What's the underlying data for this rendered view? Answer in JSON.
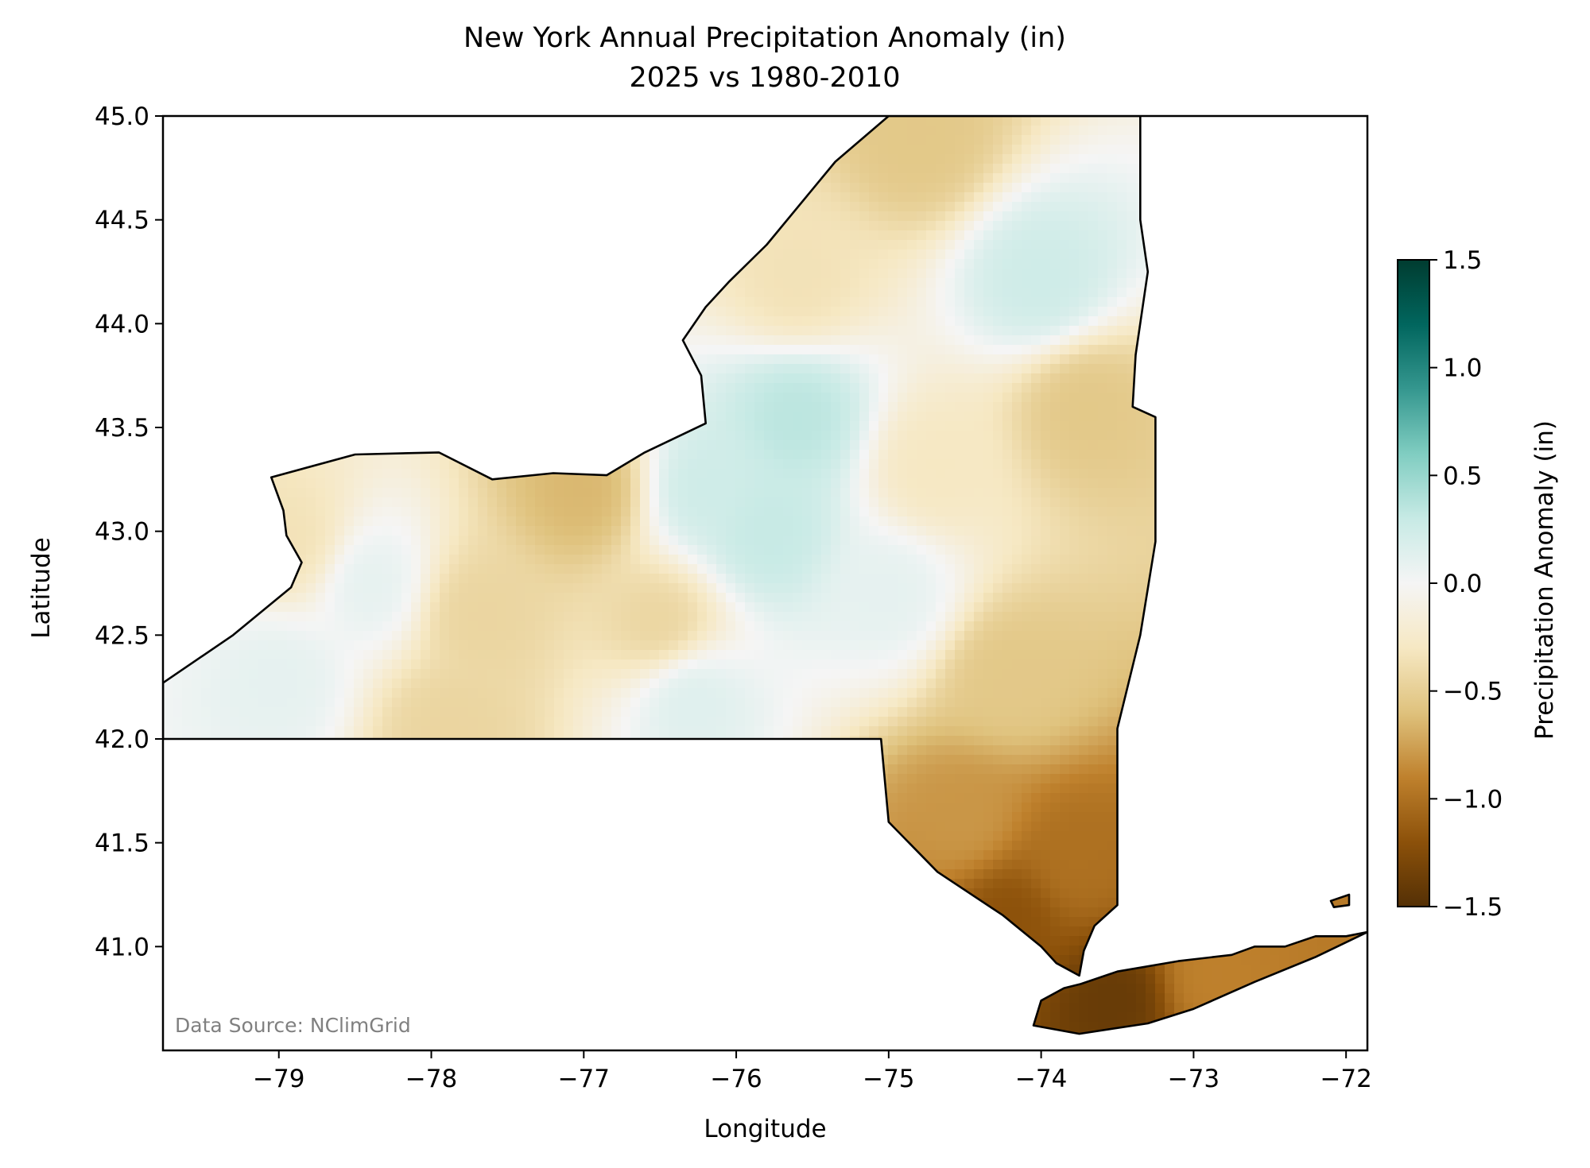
{
  "title": "New York Annual Precipitation Anomaly (in)",
  "subtitle": "2025 vs 1980-2010",
  "xlabel": "Longitude",
  "ylabel": "Latitude",
  "colorbar_label": "Precipitation Anomaly (in)",
  "source_note": "Data Source: NClimGrid",
  "colors": {
    "colormap": "BrBG",
    "stops": [
      "#543005",
      "#8c510a",
      "#bf812d",
      "#dfc27d",
      "#f6e8c3",
      "#f5f5f5",
      "#c7eae5",
      "#80cdc1",
      "#35978f",
      "#01665e",
      "#003c30"
    ],
    "boundary": "#000000"
  },
  "chart_data": {
    "type": "heatmap",
    "title": "New York Annual Precipitation Anomaly (in)",
    "subtitle": "2025 vs 1980-2010",
    "xlabel": "Longitude",
    "ylabel": "Latitude",
    "xlim": [
      -79.76,
      -71.86
    ],
    "ylim": [
      40.5,
      45.0
    ],
    "xticks": [
      -79,
      -78,
      -77,
      -76,
      -75,
      -74,
      -73,
      -72
    ],
    "xtick_labels": [
      "−79",
      "−78",
      "−77",
      "−76",
      "−75",
      "−74",
      "−73",
      "−72"
    ],
    "yticks": [
      41.0,
      41.5,
      42.0,
      42.5,
      43.0,
      43.5,
      44.0,
      44.5,
      45.0
    ],
    "ytick_labels": [
      "41.0",
      "41.5",
      "42.0",
      "42.5",
      "43.0",
      "43.5",
      "44.0",
      "44.5",
      "45.0"
    ],
    "colorbar": {
      "label": "Precipitation Anomaly (in)",
      "range": [
        -1.5,
        1.5
      ],
      "ticks": [
        -1.5,
        -1.0,
        -0.5,
        0.0,
        0.5,
        1.0,
        1.5
      ],
      "tick_labels": [
        "−1.5",
        "−1.0",
        "−0.5",
        "0.0",
        "0.5",
        "1.0",
        "1.5"
      ]
    },
    "state_outline": [
      [
        -79.76,
        42.27
      ],
      [
        -79.3,
        42.5
      ],
      [
        -78.92,
        42.73
      ],
      [
        -78.85,
        42.85
      ],
      [
        -78.95,
        42.98
      ],
      [
        -78.97,
        43.1
      ],
      [
        -79.05,
        43.26
      ],
      [
        -78.5,
        43.37
      ],
      [
        -77.95,
        43.38
      ],
      [
        -77.6,
        43.25
      ],
      [
        -77.2,
        43.28
      ],
      [
        -76.85,
        43.27
      ],
      [
        -76.6,
        43.38
      ],
      [
        -76.2,
        43.52
      ],
      [
        -76.23,
        43.75
      ],
      [
        -76.35,
        43.92
      ],
      [
        -76.2,
        44.08
      ],
      [
        -76.05,
        44.2
      ],
      [
        -75.8,
        44.38
      ],
      [
        -75.35,
        44.78
      ],
      [
        -75.0,
        45.0
      ],
      [
        -74.5,
        45.0
      ],
      [
        -73.35,
        45.0
      ],
      [
        -73.35,
        44.86
      ],
      [
        -73.35,
        44.5
      ],
      [
        -73.3,
        44.25
      ],
      [
        -73.38,
        43.85
      ],
      [
        -73.4,
        43.6
      ],
      [
        -73.25,
        43.55
      ],
      [
        -73.25,
        42.95
      ],
      [
        -73.35,
        42.5
      ],
      [
        -73.5,
        42.05
      ],
      [
        -73.5,
        41.2
      ],
      [
        -73.65,
        41.1
      ],
      [
        -73.72,
        40.98
      ],
      [
        -73.75,
        40.86
      ],
      [
        -73.9,
        40.92
      ],
      [
        -74.0,
        41.0
      ],
      [
        -74.25,
        41.15
      ],
      [
        -74.68,
        41.36
      ],
      [
        -75.0,
        41.6
      ],
      [
        -75.05,
        42.0
      ],
      [
        -79.76,
        42.0
      ]
    ],
    "long_island_outline": [
      [
        -74.05,
        40.62
      ],
      [
        -73.75,
        40.58
      ],
      [
        -73.3,
        40.63
      ],
      [
        -73.0,
        40.7
      ],
      [
        -72.6,
        40.83
      ],
      [
        -72.2,
        40.95
      ],
      [
        -71.86,
        41.07
      ],
      [
        -72.0,
        41.05
      ],
      [
        -72.2,
        41.05
      ],
      [
        -72.4,
        41.0
      ],
      [
        -72.6,
        41.0
      ],
      [
        -72.75,
        40.96
      ],
      [
        -73.1,
        40.93
      ],
      [
        -73.5,
        40.88
      ],
      [
        -73.74,
        40.82
      ],
      [
        -73.85,
        40.8
      ],
      [
        -74.0,
        40.74
      ],
      [
        -74.05,
        40.62
      ]
    ],
    "fishers_island_outline": [
      [
        -72.1,
        41.22
      ],
      [
        -71.98,
        41.25
      ],
      [
        -71.98,
        41.2
      ],
      [
        -72.08,
        41.19
      ]
    ],
    "anomaly_centers": [
      {
        "lon": -75.6,
        "lat": 43.55,
        "value": 0.35
      },
      {
        "lon": -75.8,
        "lat": 43.0,
        "value": 0.3
      },
      {
        "lon": -76.2,
        "lat": 43.2,
        "value": 0.25
      },
      {
        "lon": -74.0,
        "lat": 44.2,
        "value": 0.25
      },
      {
        "lon": -75.0,
        "lat": 42.7,
        "value": 0.1
      },
      {
        "lon": -76.3,
        "lat": 42.2,
        "value": 0.15
      },
      {
        "lon": -79.0,
        "lat": 42.3,
        "value": 0.1
      },
      {
        "lon": -78.4,
        "lat": 42.75,
        "value": 0.1
      },
      {
        "lon": -74.8,
        "lat": 44.9,
        "value": -0.55
      },
      {
        "lon": -73.7,
        "lat": 43.6,
        "value": -0.55
      },
      {
        "lon": -74.2,
        "lat": 42.3,
        "value": -0.55
      },
      {
        "lon": -74.5,
        "lat": 41.6,
        "value": -0.8
      },
      {
        "lon": -73.8,
        "lat": 41.4,
        "value": -1.0
      },
      {
        "lon": -74.2,
        "lat": 41.15,
        "value": -1.2
      },
      {
        "lon": -73.5,
        "lat": 40.75,
        "value": -1.4
      },
      {
        "lon": -72.9,
        "lat": 40.85,
        "value": -0.9
      },
      {
        "lon": -77.0,
        "lat": 43.2,
        "value": -0.65
      },
      {
        "lon": -77.7,
        "lat": 42.6,
        "value": -0.45
      },
      {
        "lon": -76.5,
        "lat": 42.55,
        "value": -0.45
      },
      {
        "lon": -78.9,
        "lat": 42.95,
        "value": -0.35
      },
      {
        "lon": -77.9,
        "lat": 42.05,
        "value": -0.45
      },
      {
        "lon": -75.6,
        "lat": 44.2,
        "value": -0.35
      },
      {
        "lon": -74.7,
        "lat": 43.3,
        "value": -0.3
      }
    ]
  }
}
